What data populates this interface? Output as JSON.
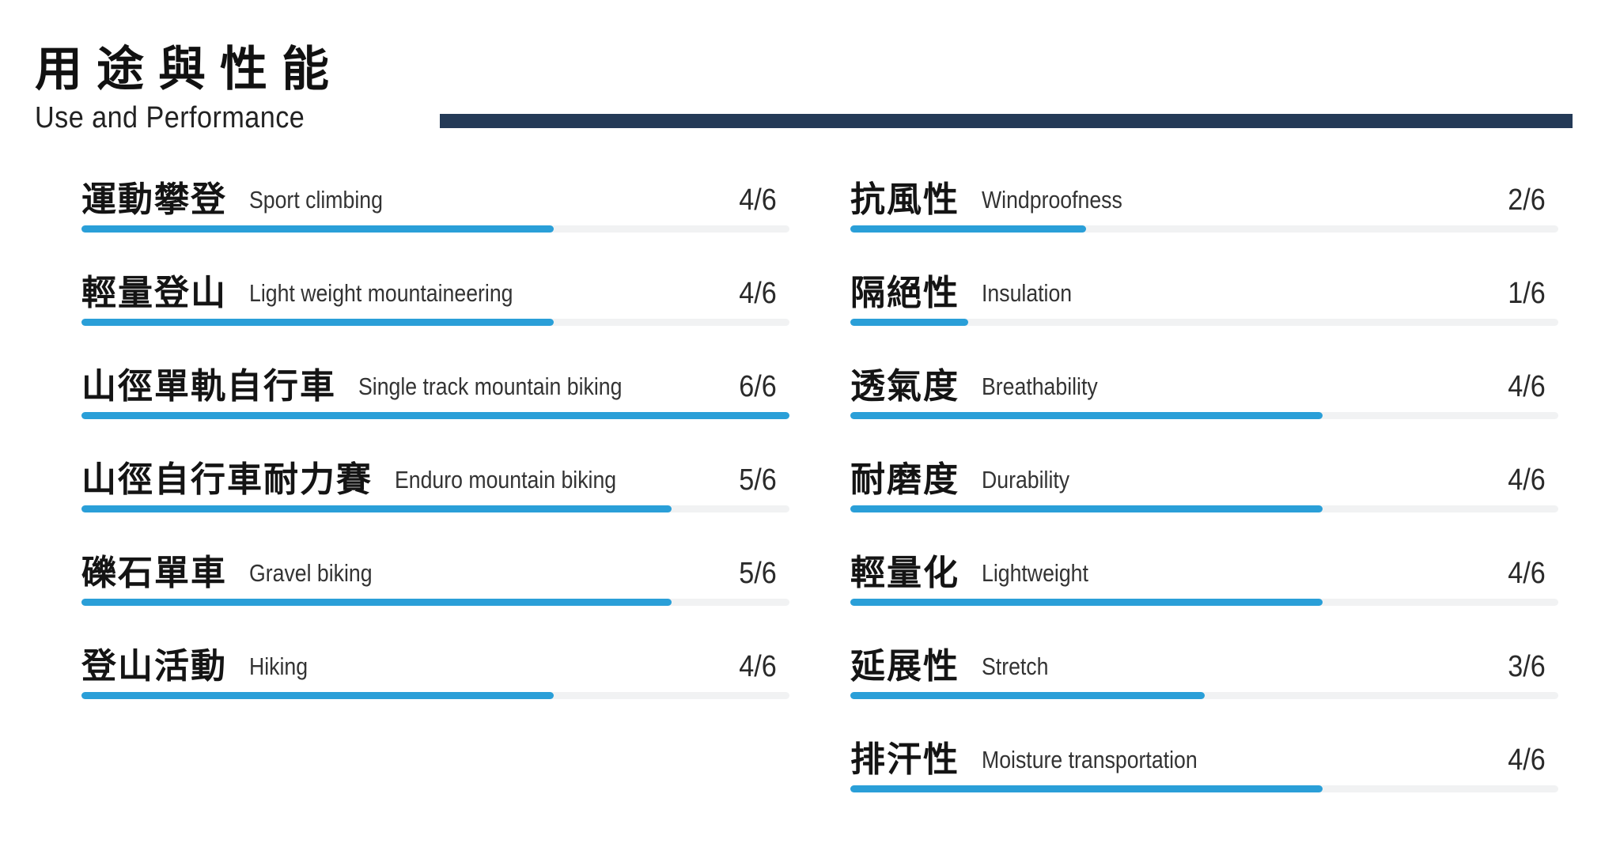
{
  "header": {
    "title_zh": "用途與性能",
    "title_en": "Use and Performance"
  },
  "colors": {
    "accent_bar": "#2a9fd8",
    "track": "#f1f2f3",
    "header_rule": "#243a57"
  },
  "scale_max": 6,
  "uses": [
    {
      "zh": "運動攀登",
      "en": "Sport climbing",
      "score_text": "4/6",
      "value": 4
    },
    {
      "zh": "輕量登山",
      "en": "Light weight mountaineering",
      "score_text": "4/6",
      "value": 4
    },
    {
      "zh": "山徑單軌自行車",
      "en": "Single track mountain biking",
      "score_text": "6/6",
      "value": 6
    },
    {
      "zh": "山徑自行車耐力賽",
      "en": "Enduro mountain biking",
      "score_text": "5/6",
      "value": 5
    },
    {
      "zh": "礫石單車",
      "en": "Gravel biking",
      "score_text": "5/6",
      "value": 5
    },
    {
      "zh": "登山活動",
      "en": "Hiking",
      "score_text": "4/6",
      "value": 4
    }
  ],
  "performance": [
    {
      "zh": "抗風性",
      "en": "Windproofness",
      "score_text": "2/6",
      "value": 2
    },
    {
      "zh": "隔絕性",
      "en": "Insulation",
      "score_text": "1/6",
      "value": 1
    },
    {
      "zh": "透氣度",
      "en": "Breathability",
      "score_text": "4/6",
      "value": 4
    },
    {
      "zh": "耐磨度",
      "en": "Durability",
      "score_text": "4/6",
      "value": 4
    },
    {
      "zh": "輕量化",
      "en": "Lightweight",
      "score_text": "4/6",
      "value": 4
    },
    {
      "zh": "延展性",
      "en": "Stretch",
      "score_text": "3/6",
      "value": 3
    },
    {
      "zh": "排汗性",
      "en": "Moisture transportation",
      "score_text": "4/6",
      "value": 4
    }
  ]
}
